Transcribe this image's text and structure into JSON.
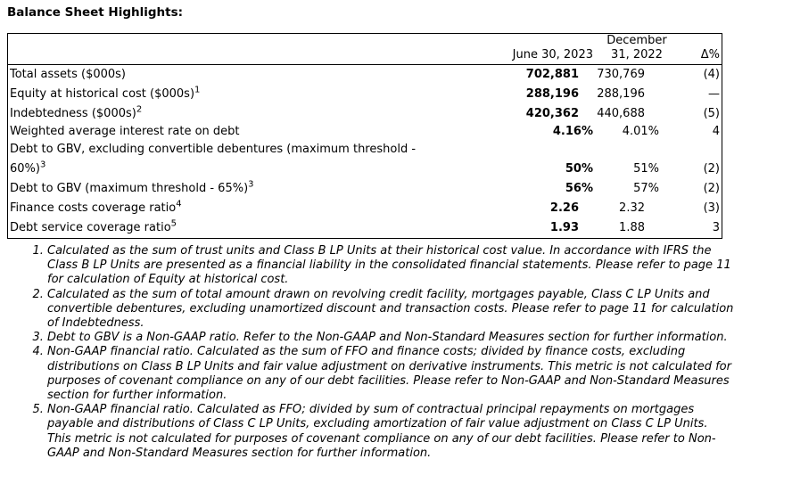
{
  "title": "Balance Sheet Highlights:",
  "headers": {
    "col1": "June 30, 2023",
    "col2a": "December",
    "col2b": "31, 2022",
    "col3": "Δ%"
  },
  "rows": [
    {
      "label": "Total assets ($000s)",
      "sup": "",
      "v2023": "702,881",
      "v2022": "730,769",
      "delta": "(4)"
    },
    {
      "label": "Equity at historical cost ($000s)",
      "sup": "1",
      "v2023": "288,196",
      "v2022": "288,196",
      "delta": "—"
    },
    {
      "label": "Indebtedness ($000s)",
      "sup": "2",
      "v2023": "420,362",
      "v2022": "440,688",
      "delta": "(5)"
    },
    {
      "label": "Weighted average interest rate on debt",
      "sup": "",
      "v2023": "4.16%",
      "v2022": "4.01%",
      "delta": "4"
    },
    {
      "label": "Debt to GBV, excluding convertible debentures (maximum threshold -",
      "label2": "60%)",
      "sup": "3",
      "v2023": "50%",
      "v2022": "51%",
      "delta": "(2)"
    },
    {
      "label": "Debt to GBV (maximum threshold - 65%)",
      "sup": "3",
      "v2023": "56%",
      "v2022": "57%",
      "delta": "(2)"
    },
    {
      "label": "Finance costs coverage ratio",
      "sup": "4",
      "v2023": "2.26",
      "v2022": "2.32",
      "delta": "(3)"
    },
    {
      "label": "Debt service coverage ratio",
      "sup": "5",
      "v2023": "1.93",
      "v2022": "1.88",
      "delta": "3"
    }
  ],
  "footnotes": [
    "Calculated as the sum of trust units and Class B LP Units at their historical cost value. In accordance with IFRS the Class B LP Units are presented as a financial liability in the consolidated financial statements. Please refer to page 11 for calculation of Equity at historical cost.",
    "Calculated as the sum of total amount drawn on revolving credit facility, mortgages payable, Class C LP Units and convertible debentures, excluding unamortized discount and transaction costs. Please refer to page 11 for calculation of Indebtedness.",
    "Debt to GBV is a Non-GAAP ratio. Refer to the Non-GAAP and Non-Standard Measures section for further information.",
    "Non-GAAP financial ratio. Calculated as the sum of FFO and finance costs; divided by finance costs, excluding distributions on Class B LP Units and fair value adjustment on derivative instruments. This metric is not calculated for purposes of covenant compliance on any of our debt facilities. Please refer to Non-GAAP and Non-Standard Measures section for further information.",
    "Non-GAAP financial ratio. Calculated as FFO; divided by sum of contractual principal repayments on mortgages payable and distributions of Class C LP Units, excluding amortization of fair value adjustment on Class C LP Units. This metric is not calculated for purposes of covenant compliance on any of our debt facilities. Please refer to Non-GAAP and Non-Standard Measures section for further information."
  ]
}
